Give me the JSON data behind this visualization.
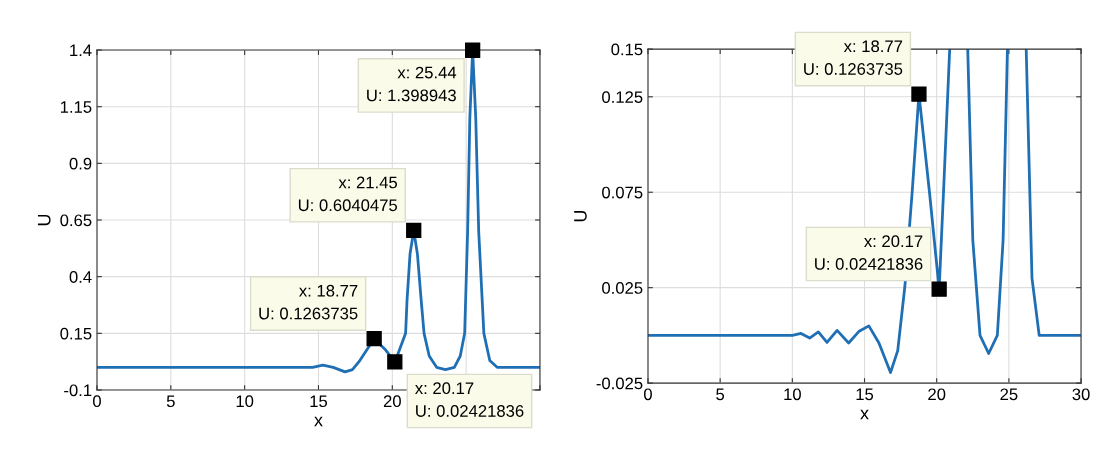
{
  "chart_data": [
    {
      "type": "line",
      "xlabel": "x",
      "ylabel": "U",
      "xlim": [
        0,
        30
      ],
      "ylim": [
        -0.1,
        1.4
      ],
      "xticks": [
        0,
        5,
        10,
        15,
        20,
        {
          "value": 25,
          "label": null
        },
        {
          "value": 30,
          "label": null
        }
      ],
      "yticks": [
        -0.1,
        0.15,
        0.4,
        0.65,
        0.9,
        1.15,
        1.4
      ],
      "grid": true,
      "legend": false,
      "marker": "none",
      "line_style": "solid",
      "series": [
        {
          "color": "#1f6fb5",
          "x": [
            0,
            5,
            10,
            10.6,
            11.2,
            11.8,
            12.4,
            13.1,
            13.9,
            14.6,
            15.3,
            16.0,
            16.8,
            17.3,
            17.8,
            18.3,
            18.77,
            19.5,
            20.17,
            20.5,
            20.9,
            21.0,
            21.2,
            21.45,
            21.7,
            21.95,
            22.15,
            22.5,
            23.0,
            23.6,
            24.2,
            24.6,
            24.9,
            25.1,
            25.25,
            25.44,
            25.65,
            25.85,
            26.2,
            26.6,
            27.1,
            30
          ],
          "values": [
            0.0,
            0.0,
            0.0,
            0.0,
            0.0,
            0.0,
            0.0,
            0.0,
            0.0,
            0.0,
            0.01,
            0.0,
            -0.02,
            -0.01,
            0.03,
            0.08,
            0.126,
            0.08,
            0.024,
            0.08,
            0.15,
            0.3,
            0.5,
            0.604,
            0.5,
            0.3,
            0.15,
            0.05,
            0.0,
            -0.01,
            0.0,
            0.05,
            0.15,
            0.6,
            1.1,
            1.399,
            1.1,
            0.6,
            0.15,
            0.03,
            0.0,
            0.0
          ]
        }
      ],
      "annotations": [
        {
          "text": "x: 18.77\nU: 0.1263735",
          "x": 18.77,
          "y": 0.1263735
        },
        {
          "text": "x: 20.17\nU: 0.02421836",
          "x": 20.17,
          "y": 0.02421836
        },
        {
          "text": "x: 21.45\nU: 0.6040475",
          "x": 21.45,
          "y": 0.6040475
        },
        {
          "text": "x: 25.44\nU: 1.398943",
          "x": 25.44,
          "y": 1.398943
        }
      ]
    },
    {
      "type": "line",
      "xlabel": "x",
      "ylabel": "U",
      "xlim": [
        0,
        30
      ],
      "ylim": [
        -0.025,
        0.15
      ],
      "xticks": [
        0,
        5,
        10,
        15,
        20,
        25,
        30
      ],
      "yticks": [
        -0.025,
        0.025,
        0.075,
        0.125,
        0.15
      ],
      "grid": true,
      "legend": false,
      "marker": "none",
      "line_style": "solid",
      "series": [
        {
          "color": "#1f6fb5",
          "x": [
            0,
            5,
            10,
            10.6,
            11.2,
            11.8,
            12.4,
            13.1,
            13.9,
            14.6,
            15.3,
            16.0,
            16.8,
            17.3,
            17.8,
            18.3,
            18.77,
            19.5,
            20.17,
            20.5,
            20.9,
            21.0,
            21.2,
            21.45,
            21.7,
            21.95,
            22.15,
            22.5,
            23.0,
            23.6,
            24.2,
            24.6,
            24.9,
            25.1,
            25.25,
            25.44,
            25.65,
            25.85,
            26.2,
            26.6,
            27.1,
            30
          ],
          "values": [
            0.0,
            0.0,
            0.0,
            0.001,
            -0.0014,
            0.0018,
            -0.0037,
            0.0026,
            -0.004,
            0.002,
            0.005,
            -0.004,
            -0.0195,
            -0.008,
            0.026,
            0.075,
            0.1264,
            0.075,
            0.0242,
            0.08,
            0.15,
            null,
            null,
            null,
            null,
            null,
            0.15,
            0.05,
            0.0,
            -0.0095,
            0.0,
            0.05,
            0.15,
            null,
            null,
            null,
            null,
            null,
            0.15,
            0.03,
            0.0,
            0.0
          ]
        }
      ],
      "annotations": [
        {
          "text": "x: 18.77\nU: 0.1263735",
          "x": 18.77,
          "y": 0.1263735
        },
        {
          "text": "x: 20.17\nU: 0.02421836",
          "x": 20.17,
          "y": 0.02421836
        }
      ]
    }
  ]
}
